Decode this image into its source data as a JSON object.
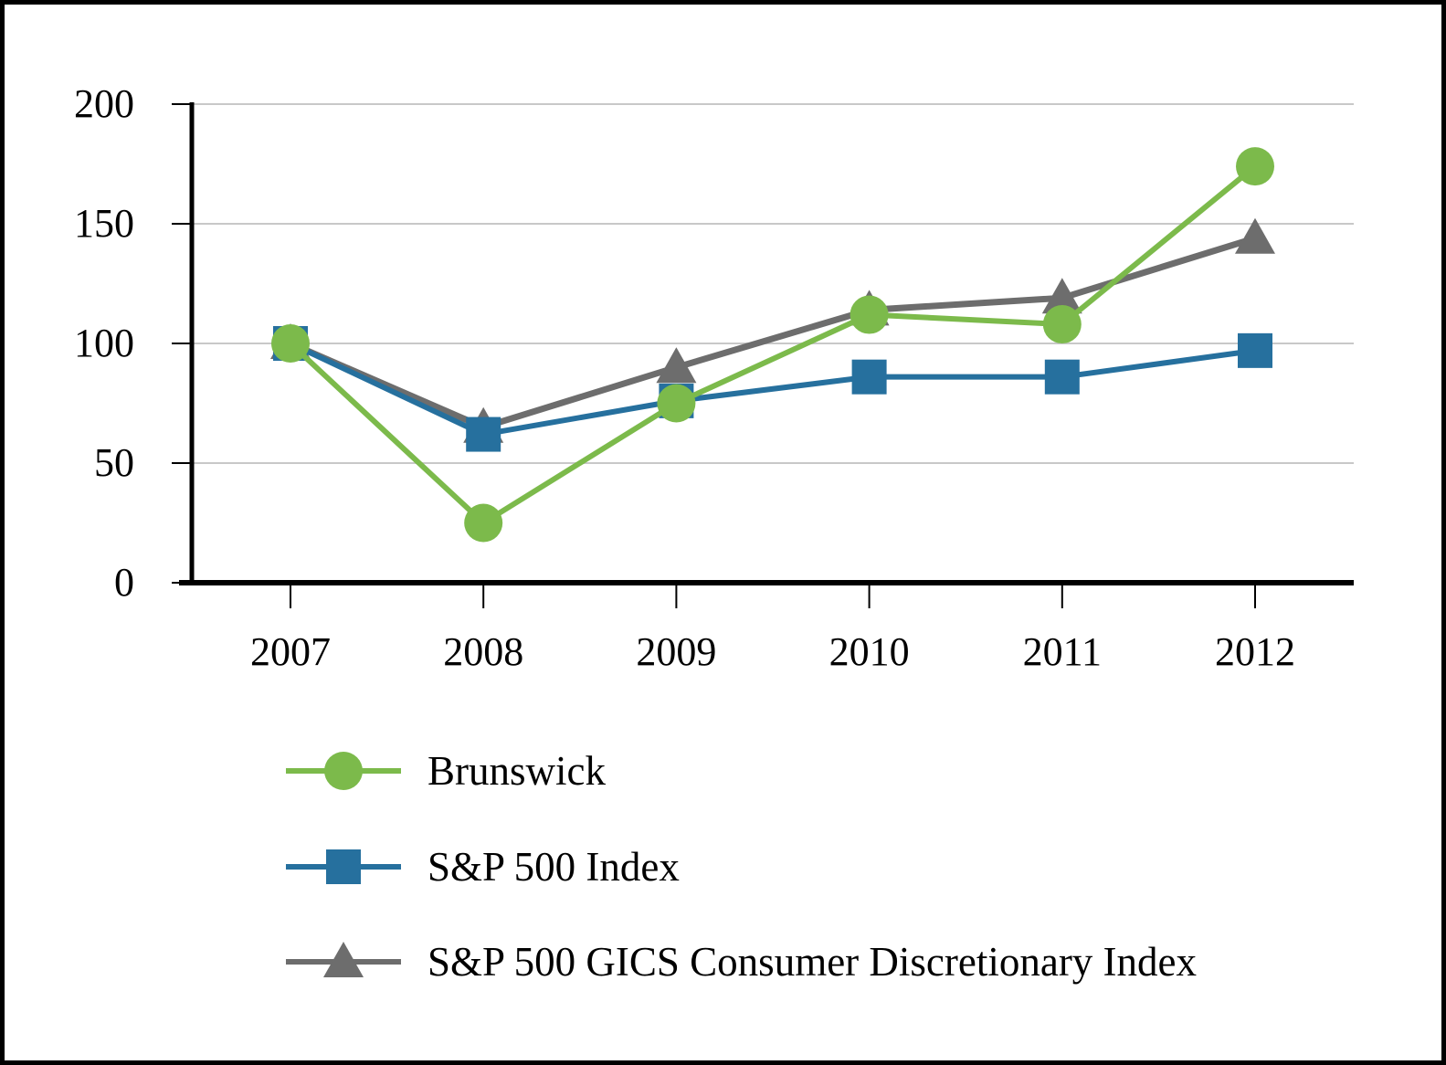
{
  "chart_data": {
    "type": "line",
    "title": "",
    "xlabel": "",
    "ylabel": "",
    "categories": [
      "2007",
      "2008",
      "2009",
      "2010",
      "2011",
      "2012"
    ],
    "series": [
      {
        "name": "Brunswick",
        "marker": "circle",
        "color": "#7cba4b",
        "values": [
          100,
          25,
          75,
          112,
          108,
          174
        ]
      },
      {
        "name": "S&P 500 Index",
        "marker": "square",
        "color": "#26709e",
        "values": [
          100,
          62,
          76,
          86,
          86,
          97
        ]
      },
      {
        "name": "S&P 500 GICS Consumer Discretionary Index",
        "marker": "triangle",
        "color": "#6d6d6d",
        "values": [
          100,
          65,
          90,
          114,
          119,
          144
        ]
      }
    ],
    "y_ticks": [
      0,
      50,
      100,
      150,
      200
    ],
    "y_tick_labels": [
      "0",
      "50",
      "100",
      "150",
      "200"
    ],
    "ylim": [
      0,
      200
    ],
    "grid": true,
    "gridline_color": "#c8c8c8",
    "axis_color": "#000000",
    "legend_position": "bottom-left"
  }
}
